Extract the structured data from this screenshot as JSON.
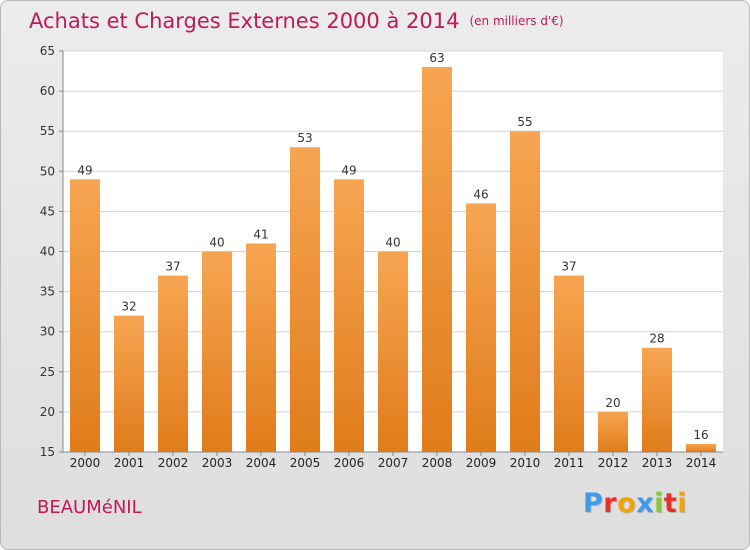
{
  "header": {
    "title": "Achats et Charges Externes 2000 à 2014",
    "unit": "(en milliers d'€)"
  },
  "footer": {
    "commune": "BEAUMéNIL",
    "logo_text": "Proxiti"
  },
  "colors": {
    "title": "#c2185b",
    "bar_light": "#f7a552",
    "bar_dark": "#e07c1a",
    "logo": [
      "#3d9be9",
      "#e8302a",
      "#f4a300",
      "#3d9be9",
      "#8bc43f",
      "#e8302a",
      "#f4a300"
    ]
  },
  "chart_data": {
    "type": "bar",
    "title": "Achats et Charges Externes 2000 à 2014",
    "subtitle": "(en milliers d'€)",
    "xlabel": "",
    "ylabel": "",
    "categories": [
      "2000",
      "2001",
      "2002",
      "2003",
      "2004",
      "2005",
      "2006",
      "2007",
      "2008",
      "2009",
      "2010",
      "2011",
      "2012",
      "2013",
      "2014"
    ],
    "values": [
      49,
      32,
      37,
      40,
      41,
      53,
      49,
      40,
      63,
      46,
      55,
      37,
      20,
      28,
      16
    ],
    "ylim": [
      15,
      65
    ],
    "yticks": [
      15,
      20,
      25,
      30,
      35,
      40,
      45,
      50,
      55,
      60,
      65
    ],
    "grid": true,
    "data_labels": true
  }
}
